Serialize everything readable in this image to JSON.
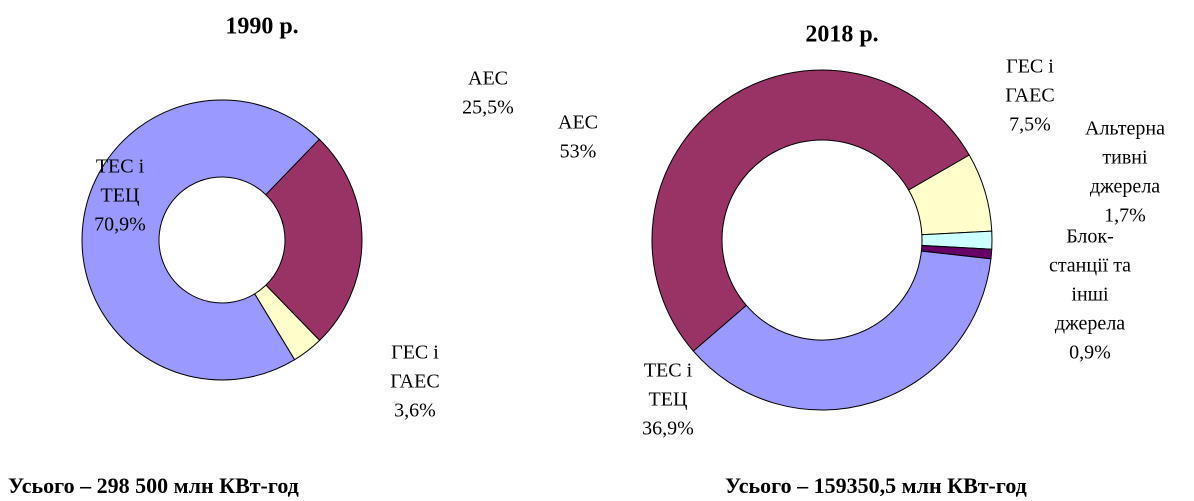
{
  "chart_data": [
    {
      "type": "donut",
      "title": "1990 р.",
      "total": "Усього – 298 500 млн КВт-год",
      "series": [
        {
          "name_lines": [
            "АЕС"
          ],
          "color": "#993366",
          "value": 25.5,
          "value_label": "25,5%"
        },
        {
          "name_lines": [
            "ГЕС і",
            "ГАЕС"
          ],
          "color": "#ffffcc",
          "value": 3.6,
          "value_label": "3,6%"
        },
        {
          "name_lines": [
            "ТЕС і",
            "ТЕЦ"
          ],
          "color": "#9999ff",
          "value": 70.9,
          "value_label": "70,9%"
        }
      ]
    },
    {
      "type": "donut",
      "title": "2018 р.",
      "total": "Усього – 159350,5 млн КВт-год",
      "series": [
        {
          "name_lines": [
            "ГЕС і",
            "ГАЕС"
          ],
          "color": "#ffffcc",
          "value": 7.5,
          "value_label": "7,5%"
        },
        {
          "name_lines": [
            "Альтерна",
            "тивні",
            "джерела"
          ],
          "color": "#ccffff",
          "value": 1.7,
          "value_label": "1,7%"
        },
        {
          "name_lines": [
            "Блок-",
            "станції та",
            "інші",
            "джерела"
          ],
          "color": "#660066",
          "value": 0.9,
          "value_label": "0,9%"
        },
        {
          "name_lines": [
            "ТЕС і",
            "ТЕЦ"
          ],
          "color": "#9999ff",
          "value": 36.9,
          "value_label": "36,9%"
        },
        {
          "name_lines": [
            "АЕС"
          ],
          "color": "#993366",
          "value": 53,
          "value_label": "53%"
        }
      ]
    }
  ]
}
